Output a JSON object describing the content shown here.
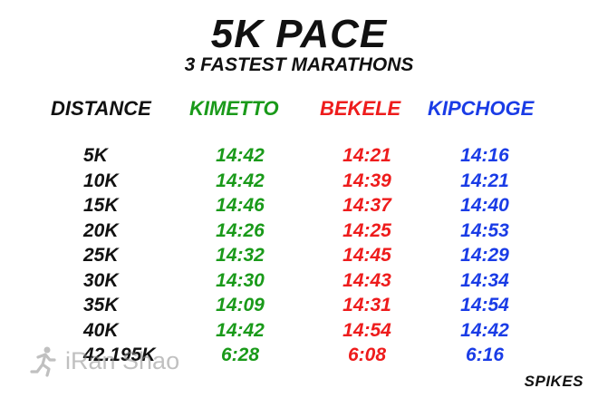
{
  "title": "5K PACE",
  "subtitle": "3 FASTEST MARATHONS",
  "headers": {
    "distance": "DISTANCE",
    "kimetto": "KIMETTO",
    "bekele": "BEKELE",
    "kipchoge": "KIPCHOGE"
  },
  "colors": {
    "kimetto": "#1a9a1a",
    "bekele": "#ee1c1c",
    "kipchoge": "#1a3ce6",
    "text": "#111111"
  },
  "distances": [
    "5K",
    "10K",
    "15K",
    "20K",
    "25K",
    "30K",
    "35K",
    "40K",
    "42.195K"
  ],
  "kimetto": [
    "14:42",
    "14:42",
    "14:46",
    "14:26",
    "14:32",
    "14:30",
    "14:09",
    "14:42",
    "6:28"
  ],
  "bekele": [
    "14:21",
    "14:39",
    "14:37",
    "14:25",
    "14:45",
    "14:43",
    "14:31",
    "14:54",
    "6:08"
  ],
  "kipchoge": [
    "14:16",
    "14:21",
    "14:40",
    "14:53",
    "14:29",
    "14:34",
    "14:54",
    "14:42",
    "6:16"
  ],
  "watermark": "iRan Shao",
  "brand": "SPIKES"
}
